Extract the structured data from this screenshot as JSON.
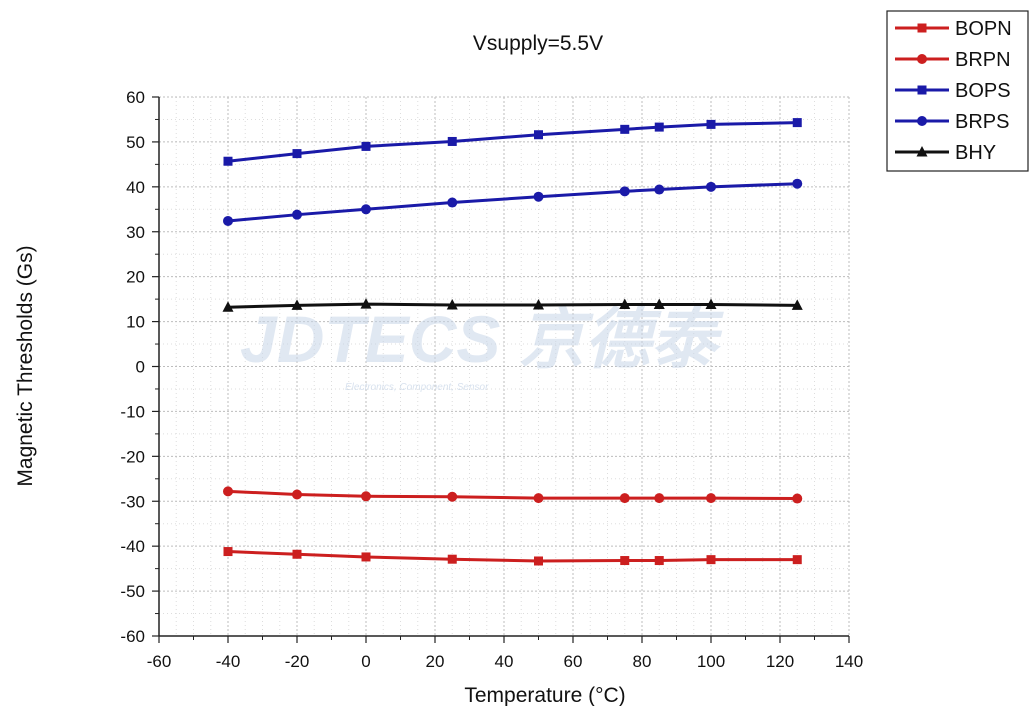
{
  "chart_data": {
    "type": "line",
    "title": "Vsupply=5.5V",
    "xlabel": "Temperature (°C)",
    "ylabel": "Magnetic Thresholds (Gs)",
    "xlim": [
      -60,
      140
    ],
    "ylim": [
      -60,
      60
    ],
    "x_ticks": [
      -60,
      -40,
      -20,
      0,
      20,
      40,
      60,
      80,
      100,
      120,
      140
    ],
    "y_ticks": [
      60,
      50,
      40,
      30,
      20,
      10,
      0,
      -10,
      -20,
      -30,
      -40,
      -50,
      -60
    ],
    "x_tick_labels": [
      "-60",
      "-40",
      "-20",
      "0",
      "20",
      "40",
      "60",
      "80",
      "100",
      "120",
      "140"
    ],
    "y_tick_labels": [
      "60",
      "50",
      "40",
      "30",
      "20",
      "10",
      "0",
      "-10",
      "-20",
      "-30",
      "-40",
      "-50",
      "-60"
    ],
    "grid": true,
    "legend_position": "top-right",
    "x": [
      -40,
      -20,
      0,
      25,
      50,
      75,
      85,
      100,
      125
    ],
    "series": [
      {
        "name": "BOPN",
        "color": "#cc1f1f",
        "marker": "square",
        "values": [
          -41.2,
          -41.8,
          -42.4,
          -42.9,
          -43.3,
          -43.2,
          -43.2,
          -43.0,
          -43.0
        ]
      },
      {
        "name": "BRPN",
        "color": "#cc1f1f",
        "marker": "circle",
        "values": [
          -27.8,
          -28.5,
          -28.9,
          -29.0,
          -29.3,
          -29.3,
          -29.3,
          -29.3,
          -29.4
        ]
      },
      {
        "name": "BOPS",
        "color": "#1a1aa8",
        "marker": "square",
        "values": [
          45.7,
          47.4,
          49.0,
          50.1,
          51.6,
          52.8,
          53.3,
          53.9,
          54.3
        ]
      },
      {
        "name": "BRPS",
        "color": "#1a1aa8",
        "marker": "circle",
        "values": [
          32.4,
          33.8,
          35.0,
          36.5,
          37.8,
          39.0,
          39.4,
          40.0,
          40.7
        ]
      },
      {
        "name": "BHY",
        "color": "#111111",
        "marker": "triangle",
        "values": [
          13.2,
          13.6,
          13.9,
          13.7,
          13.7,
          13.8,
          13.8,
          13.8,
          13.6
        ]
      }
    ]
  },
  "watermark": {
    "main": "JDTECS 京德泰",
    "sub": "Electronics, Component, Sensor"
  }
}
